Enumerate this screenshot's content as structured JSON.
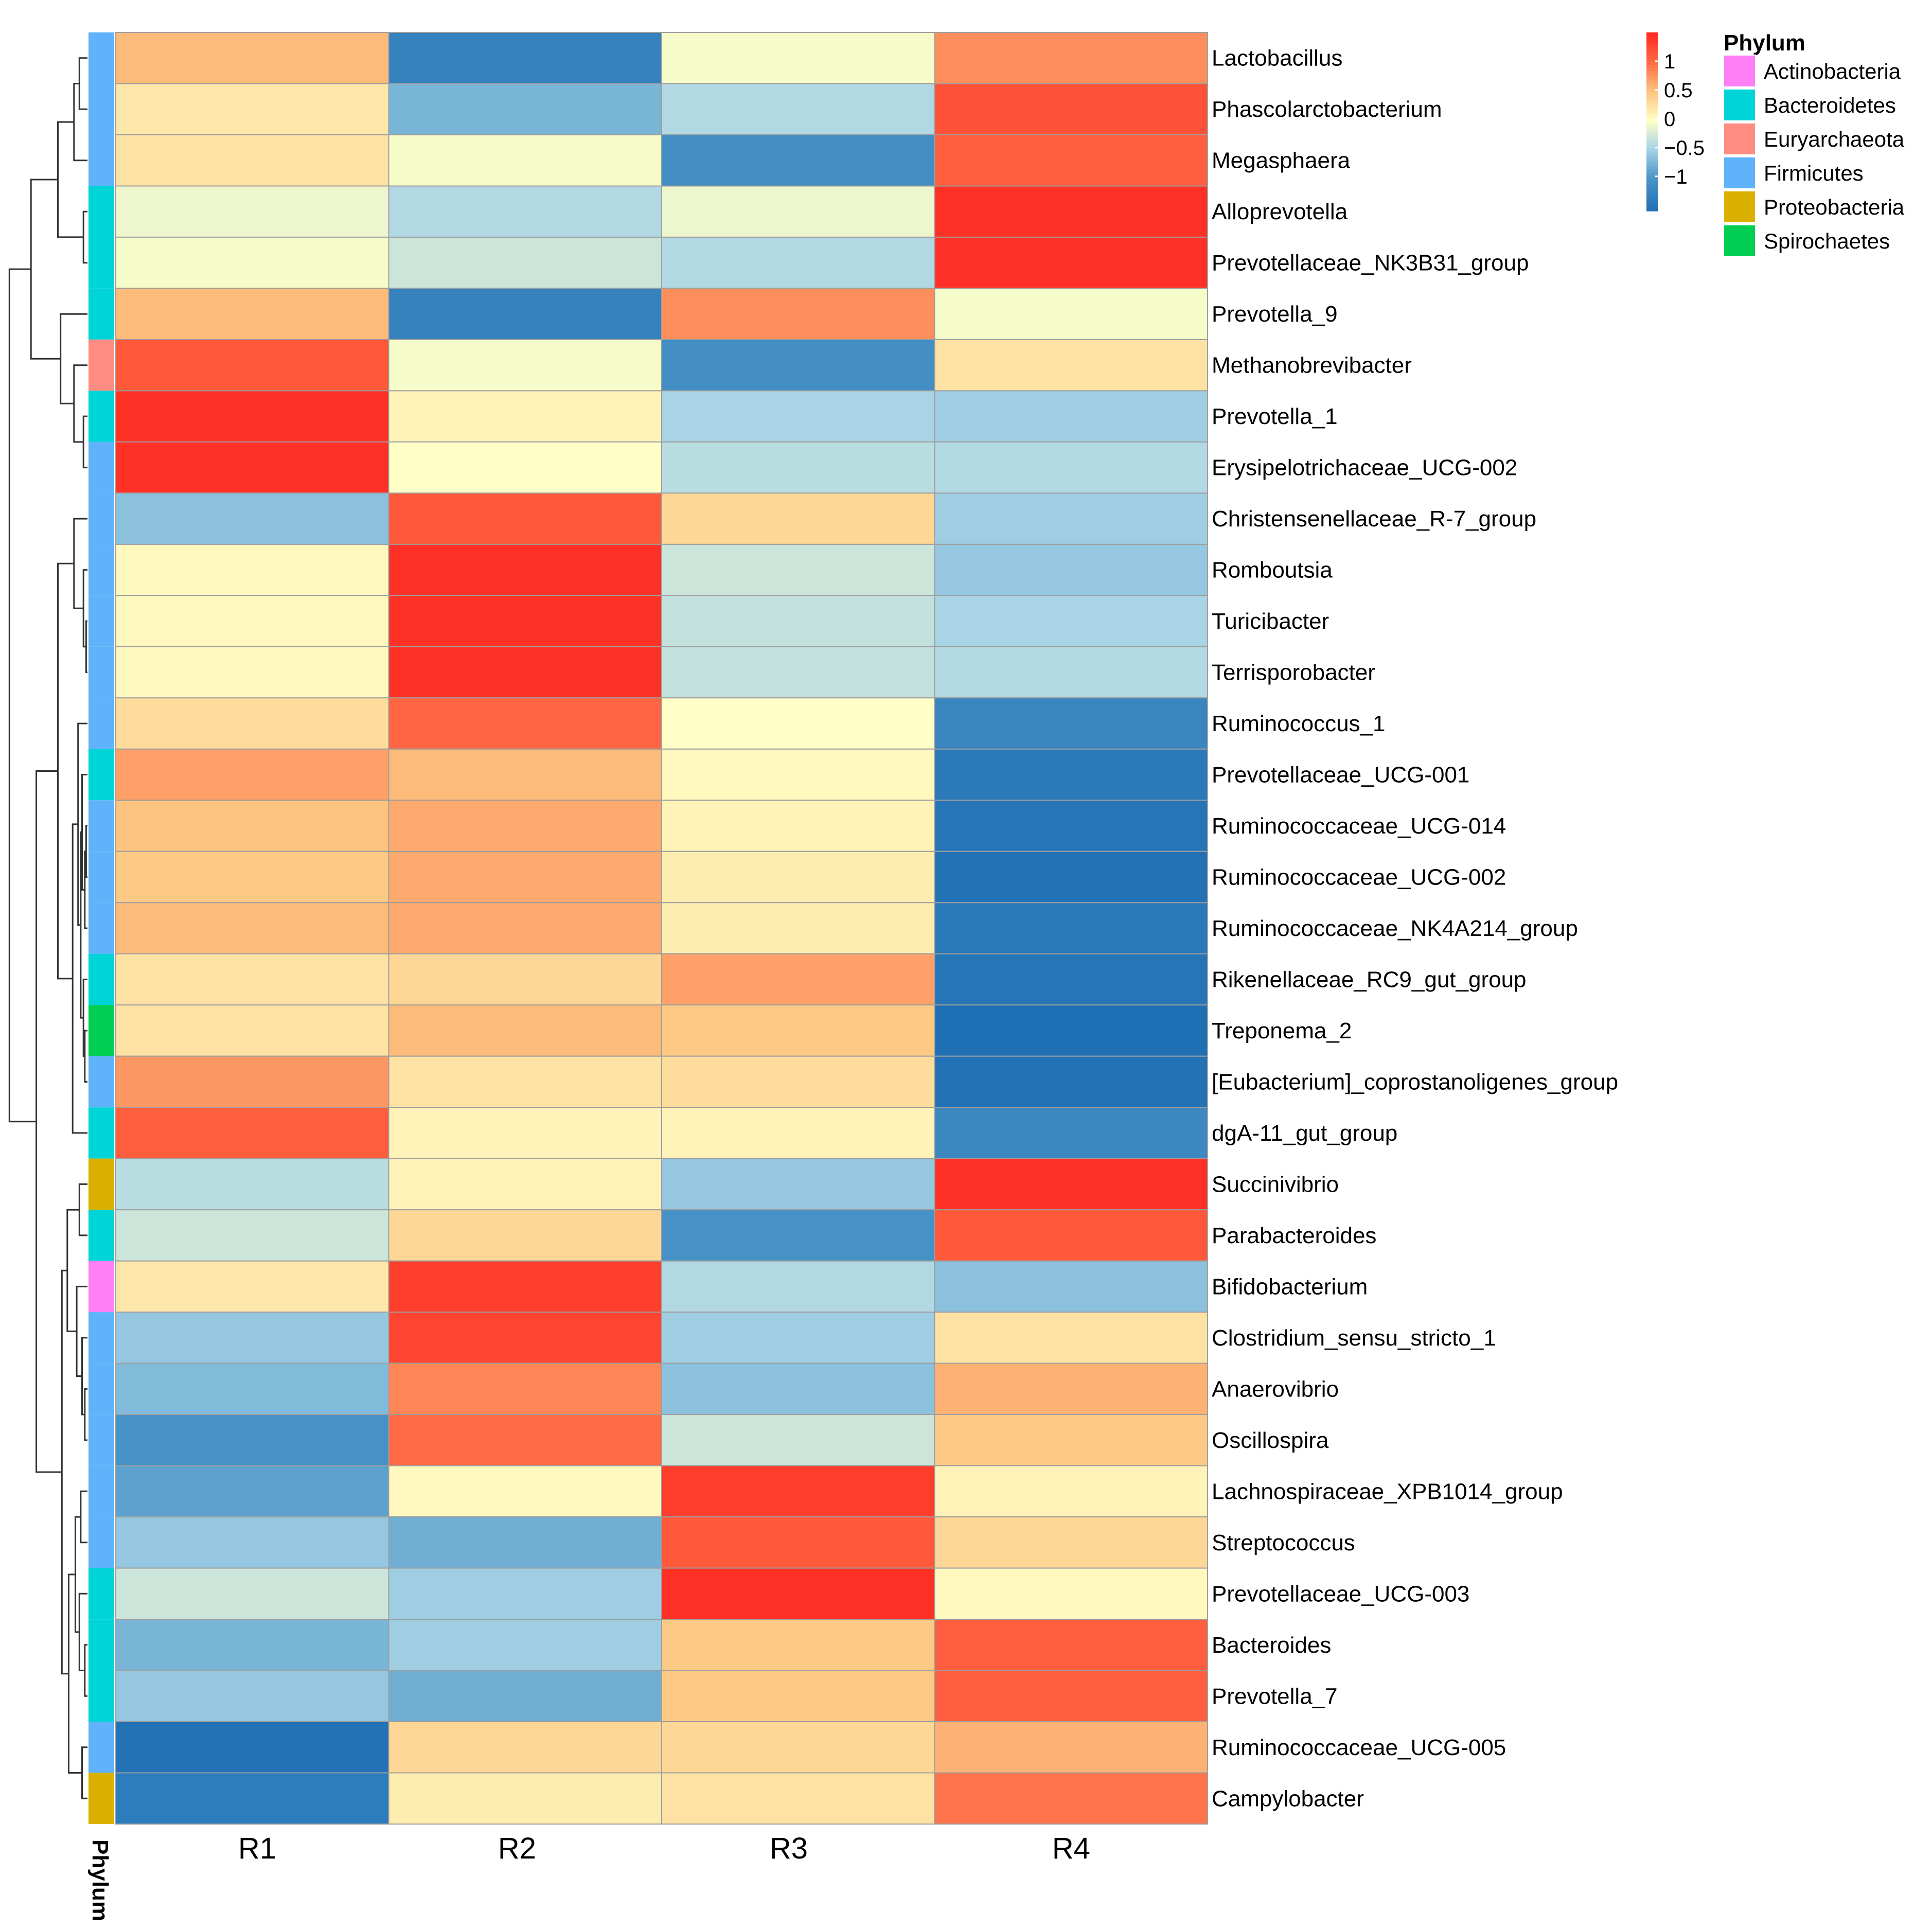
{
  "chart_data": {
    "type": "heatmap",
    "title": "",
    "columns": [
      "R1",
      "R2",
      "R3",
      "R4"
    ],
    "rows": [
      {
        "genus": "Lactobacillus",
        "phylum": "Firmicutes",
        "values": [
          0.55,
          -1.3,
          -0.05,
          0.8
        ]
      },
      {
        "genus": "Phascolarctobacterium",
        "phylum": "Firmicutes",
        "values": [
          0.2,
          -0.75,
          -0.45,
          1.2
        ]
      },
      {
        "genus": "Megasphaera",
        "phylum": "Firmicutes",
        "values": [
          0.25,
          -0.05,
          -1.1,
          1.1
        ]
      },
      {
        "genus": "Alloprevotella",
        "phylum": "Bacteroidetes",
        "values": [
          -0.1,
          -0.45,
          -0.1,
          1.45
        ]
      },
      {
        "genus": "Prevotellaceae_NK3B31_group",
        "phylum": "Bacteroidetes",
        "values": [
          -0.05,
          -0.3,
          -0.45,
          1.45
        ]
      },
      {
        "genus": "Prevotella_9",
        "phylum": "Bacteroidetes",
        "values": [
          0.55,
          -1.3,
          0.8,
          -0.05
        ]
      },
      {
        "genus": "Methanobrevibacter",
        "phylum": "Euryarchaeota",
        "values": [
          1.15,
          -0.05,
          -1.1,
          0.25
        ]
      },
      {
        "genus": "Prevotella_1",
        "phylum": "Bacteroidetes",
        "values": [
          1.45,
          0.1,
          -0.5,
          -0.55
        ]
      },
      {
        "genus": "Erysipelotrichaceae_UCG-002",
        "phylum": "Firmicutes",
        "values": [
          1.45,
          0.0,
          -0.4,
          -0.45
        ]
      },
      {
        "genus": "Christensenellaceae_R-7_group",
        "phylum": "Firmicutes",
        "values": [
          -0.65,
          1.15,
          0.35,
          -0.55
        ]
      },
      {
        "genus": "Romboutsia",
        "phylum": "Firmicutes",
        "values": [
          0.05,
          1.45,
          -0.3,
          -0.6
        ]
      },
      {
        "genus": "Turicibacter",
        "phylum": "Firmicutes",
        "values": [
          0.05,
          1.45,
          -0.35,
          -0.5
        ]
      },
      {
        "genus": "Terrisporobacter",
        "phylum": "Firmicutes",
        "values": [
          0.05,
          1.45,
          -0.35,
          -0.45
        ]
      },
      {
        "genus": "Ruminococcus_1",
        "phylum": "Firmicutes",
        "values": [
          0.3,
          1.05,
          0.0,
          -1.25
        ]
      },
      {
        "genus": "Prevotellaceae_UCG-001",
        "phylum": "Bacteroidetes",
        "values": [
          0.7,
          0.55,
          0.05,
          -1.45
        ]
      },
      {
        "genus": "Ruminococcaceae_UCG-014",
        "phylum": "Firmicutes",
        "values": [
          0.5,
          0.65,
          0.1,
          -1.5
        ]
      },
      {
        "genus": "Ruminococcaceae_UCG-002",
        "phylum": "Firmicutes",
        "values": [
          0.45,
          0.65,
          0.15,
          -1.55
        ]
      },
      {
        "genus": "Ruminococcaceae_NK4A214_group",
        "phylum": "Firmicutes",
        "values": [
          0.55,
          0.65,
          0.15,
          -1.45
        ]
      },
      {
        "genus": "Rikenellaceae_RC9_gut_group",
        "phylum": "Bacteroidetes",
        "values": [
          0.25,
          0.35,
          0.7,
          -1.5
        ]
      },
      {
        "genus": "Treponema_2",
        "phylum": "Spirochaetes",
        "values": [
          0.25,
          0.55,
          0.45,
          -1.6
        ]
      },
      {
        "genus": "[Eubacterium]_coprostanoligenes_group",
        "phylum": "Firmicutes",
        "values": [
          0.75,
          0.25,
          0.3,
          -1.55
        ]
      },
      {
        "genus": "dgA-11_gut_group",
        "phylum": "Bacteroidetes",
        "values": [
          1.1,
          0.1,
          0.1,
          -1.2
        ]
      },
      {
        "genus": "Succinivibrio",
        "phylum": "Proteobacteria",
        "values": [
          -0.4,
          0.1,
          -0.6,
          1.45
        ]
      },
      {
        "genus": "Parabacteroides",
        "phylum": "Bacteroidetes",
        "values": [
          -0.3,
          0.35,
          -1.05,
          1.15
        ]
      },
      {
        "genus": "Bifidobacterium",
        "phylum": "Actinobacteria",
        "values": [
          0.2,
          1.35,
          -0.45,
          -0.65
        ]
      },
      {
        "genus": "Clostridium_sensu_stricto_1",
        "phylum": "Firmicutes",
        "values": [
          -0.6,
          1.3,
          -0.55,
          0.25
        ]
      },
      {
        "genus": "Anaerovibrio",
        "phylum": "Firmicutes",
        "values": [
          -0.7,
          0.85,
          -0.65,
          0.6
        ]
      },
      {
        "genus": "Oscillospira",
        "phylum": "Firmicutes",
        "values": [
          -1.05,
          1.0,
          -0.3,
          0.45
        ]
      },
      {
        "genus": "Lachnospiraceae_XPB1014_group",
        "phylum": "Firmicutes",
        "values": [
          -0.9,
          0.05,
          1.35,
          0.1
        ]
      },
      {
        "genus": "Streptococcus",
        "phylum": "Firmicutes",
        "values": [
          -0.6,
          -0.8,
          1.15,
          0.35
        ]
      },
      {
        "genus": "Prevotellaceae_UCG-003",
        "phylum": "Bacteroidetes",
        "values": [
          -0.3,
          -0.55,
          1.45,
          0.05
        ]
      },
      {
        "genus": "Bacteroides",
        "phylum": "Bacteroidetes",
        "values": [
          -0.75,
          -0.55,
          0.45,
          1.1
        ]
      },
      {
        "genus": "Prevotella_7",
        "phylum": "Bacteroidetes",
        "values": [
          -0.6,
          -0.8,
          0.45,
          1.1
        ]
      },
      {
        "genus": "Ruminococcaceae_UCG-005",
        "phylum": "Firmicutes",
        "values": [
          -1.55,
          0.35,
          0.35,
          0.6
        ]
      },
      {
        "genus": "Campylobacter",
        "phylum": "Proteobacteria",
        "values": [
          -1.4,
          0.15,
          0.25,
          0.95
        ]
      }
    ],
    "color_scale": {
      "min": -1.6,
      "max": 1.5,
      "stops": [
        {
          "value": -1.6,
          "color": "#1F6FB4"
        },
        {
          "value": -1.0,
          "color": "#4A95C8"
        },
        {
          "value": -0.5,
          "color": "#A8D4E6"
        },
        {
          "value": 0.0,
          "color": "#FFFFC7"
        },
        {
          "value": 0.5,
          "color": "#FDC47F"
        },
        {
          "value": 1.0,
          "color": "#FF6B45"
        },
        {
          "value": 1.5,
          "color": "#FF2A22"
        }
      ],
      "ticks": [
        "1",
        "0.5",
        "0",
        "−0.5",
        "−1"
      ],
      "tick_values": [
        1,
        0.5,
        0,
        -0.5,
        -1
      ]
    },
    "annotation": {
      "title": "Phylum",
      "axis_label": "Phylum",
      "legend": [
        {
          "name": "Actinobacteria",
          "color": "#FF7FF4"
        },
        {
          "name": "Bacteroidetes",
          "color": "#00D4D6"
        },
        {
          "name": "Euryarchaeota",
          "color": "#FF8C80"
        },
        {
          "name": "Firmicutes",
          "color": "#60B3FA"
        },
        {
          "name": "Proteobacteria",
          "color": "#DBB100"
        },
        {
          "name": "Spirochaetes",
          "color": "#00CE52"
        }
      ]
    },
    "dendrogram": "row clustering tree (left side)",
    "xlabel": "",
    "ylabel": ""
  }
}
